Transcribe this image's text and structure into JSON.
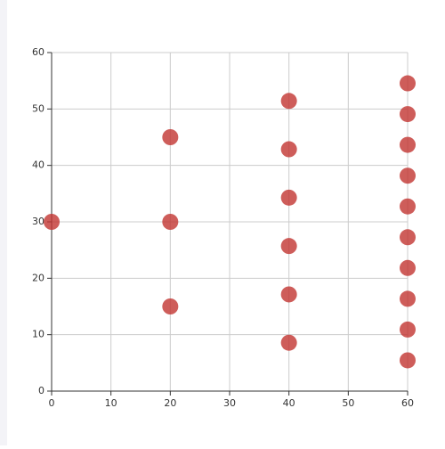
{
  "chart_data": {
    "type": "scatter",
    "x": [
      0,
      20,
      20,
      20,
      40,
      40,
      40,
      40,
      40,
      40,
      60,
      60,
      60,
      60,
      60,
      60,
      60,
      60,
      60,
      60
    ],
    "series": [
      {
        "color": "#c23531",
        "values": [
          30,
          15,
          30,
          45,
          8.57,
          17.14,
          25.71,
          34.29,
          42.86,
          51.43,
          5.45,
          10.91,
          16.36,
          21.82,
          27.27,
          32.73,
          38.18,
          43.64,
          49.09,
          54.55
        ]
      }
    ],
    "xlim": [
      0,
      60
    ],
    "xticks": [
      0,
      10,
      20,
      30,
      40,
      50,
      60
    ],
    "ylim": [
      0,
      60
    ],
    "yticks": [
      0,
      10,
      20,
      30,
      40,
      50,
      60
    ],
    "grid": true
  }
}
